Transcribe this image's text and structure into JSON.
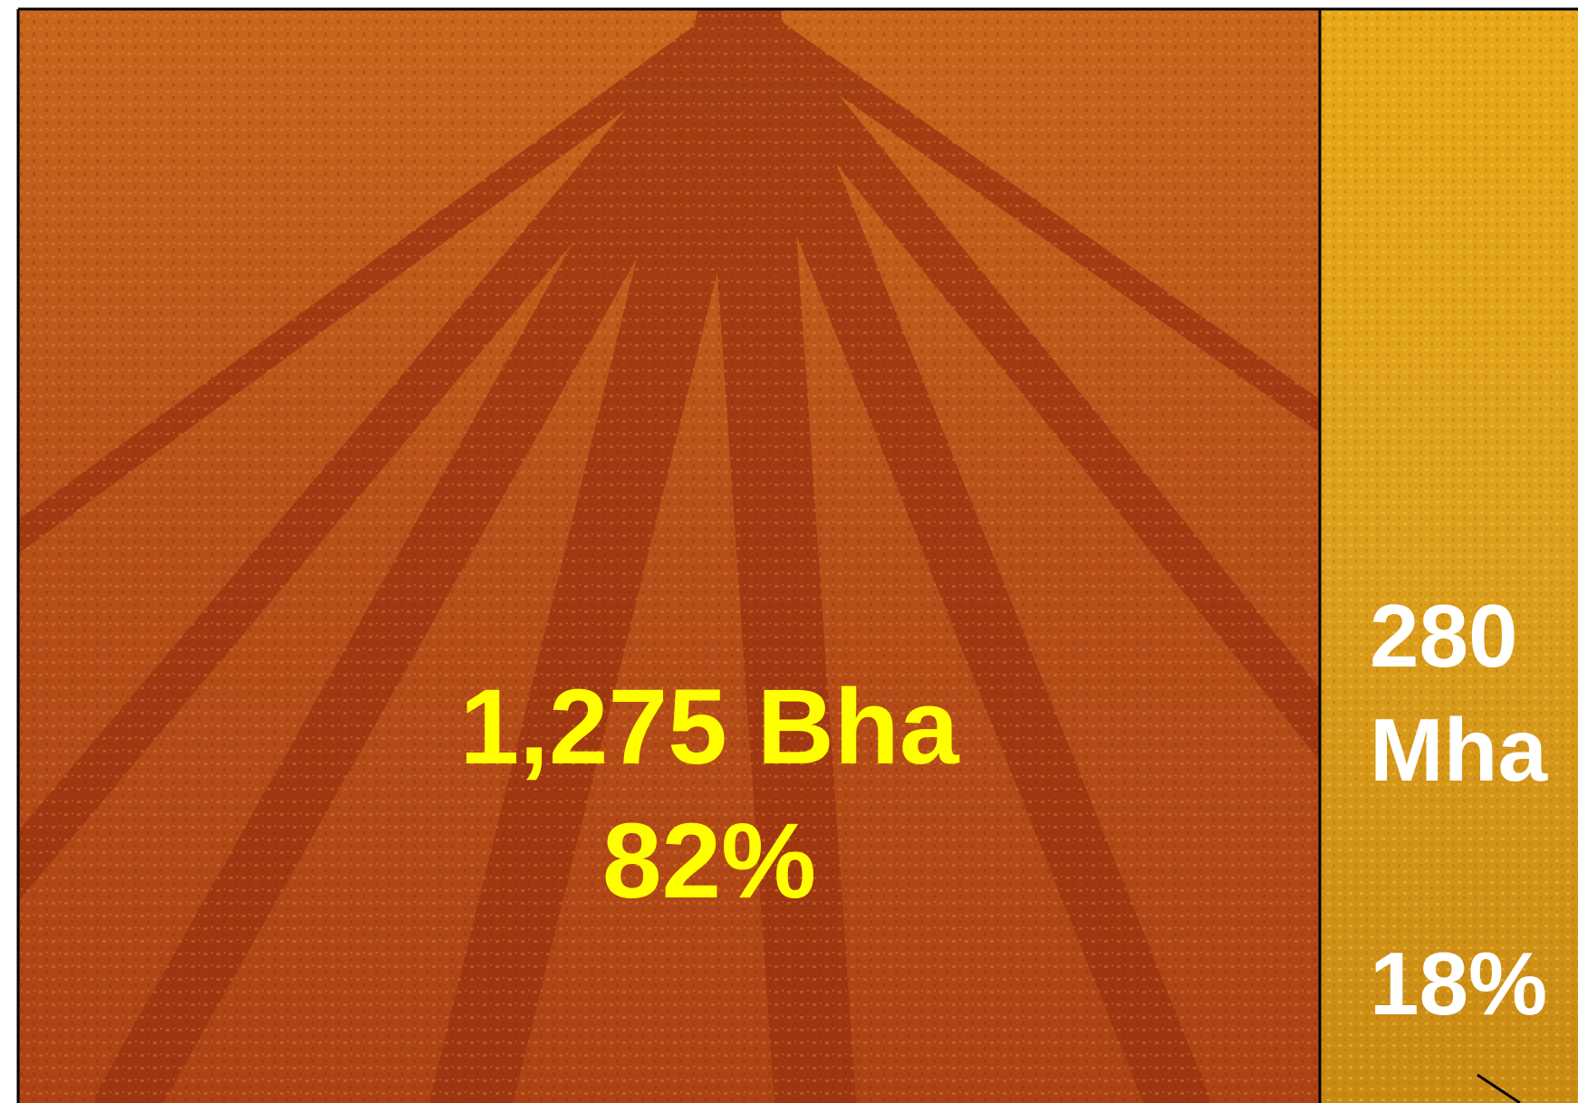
{
  "panels": [
    {
      "amount": "1,275 Bha",
      "share": "82%"
    },
    {
      "amount_number": "280",
      "amount_unit": "Mha",
      "share": "18%"
    }
  ]
}
